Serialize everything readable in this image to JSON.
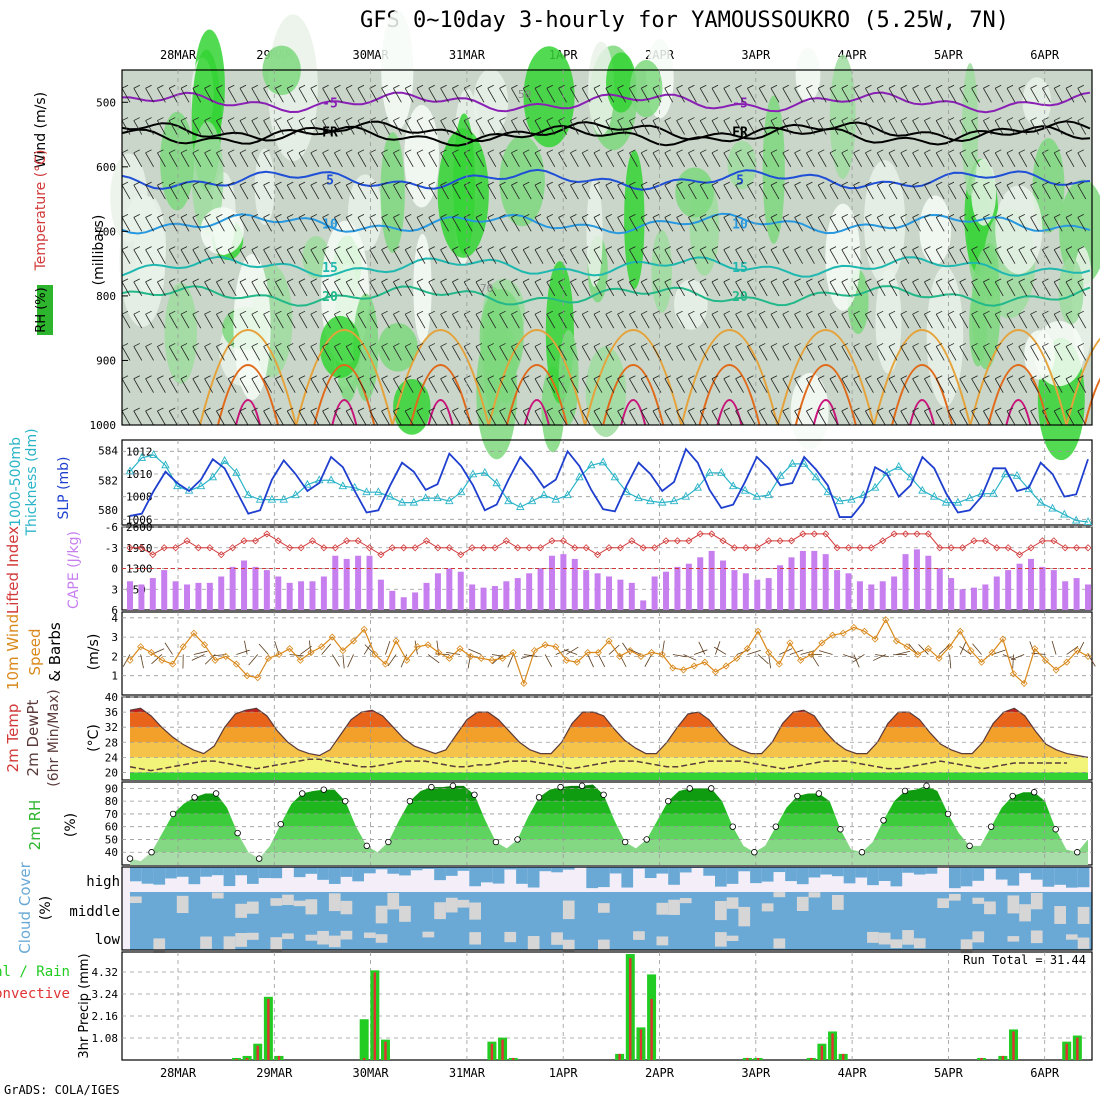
{
  "title": "GFS 0~10day 3-hourly for YAMOUSSOUKRO (5.25W, 7N)",
  "dates": [
    "28MAR",
    "29MAR",
    "30MAR",
    "31MAR",
    "1APR",
    "2APR",
    "3APR",
    "4APR",
    "5APR",
    "6APR"
  ],
  "footer": "GrADS: COLA/IGES",
  "panel_labels": {
    "upper_wind": "Wind (m/s)",
    "upper_temp": "Temperature (°C)",
    "upper_rh": "RH (%)",
    "upper_units": "(millibars)",
    "slp_thick_a": "1000-500mb",
    "slp_thick_b": "Thickness (dm)",
    "slp": "SLP (mb)",
    "li": "Lifted Index",
    "cape": "CAPE (J/kg)",
    "wind10_a": "10m Wind",
    "wind10_b": "Speed",
    "wind10_c": "& Barbs",
    "wind10_unit": "(m/s)",
    "t2_a": "2m Temp",
    "t2_b": "2m DewPt",
    "t2_c": "(6hr Min/Max)",
    "t2_unit": "(°C)",
    "rh2": "2m RH",
    "rh2_unit": "(%)",
    "cloud": "Cloud Cover",
    "cloud_unit": "(%)",
    "cloud_high": "high",
    "cloud_middle": "middle",
    "cloud_low": "low",
    "precip_a": "Total / Rain",
    "precip_b": "Convective",
    "precip_axis": "3hr Precip (mm)",
    "run_total": "Run Total = 31.44"
  },
  "colors": {
    "slp": "#1f3fcf",
    "thickness": "#2ab4c8",
    "cape": "#c77ff0",
    "li": "#d23a3a",
    "wind10": "#d9881a",
    "rh_green": "#2db52d",
    "cloud": "#6aa9d6",
    "precip_total": "#22cc22",
    "precip_conv": "#e03333"
  },
  "chart_data": [
    {
      "type": "heatmap",
      "panel": "upper-air cross section",
      "x": [
        "28MAR",
        "29MAR",
        "30MAR",
        "31MAR",
        "1APR",
        "2APR",
        "3APR",
        "4APR",
        "5APR",
        "6APR"
      ],
      "ylabel": "millibars",
      "yticks": [
        500,
        600,
        700,
        800,
        900,
        1000
      ],
      "ylim": [
        1000,
        450
      ],
      "isotherm_labels": [
        "-5",
        "FR",
        "5",
        "10",
        "15",
        "20"
      ],
      "rh_contour_labels": [
        "50",
        "70"
      ]
    },
    {
      "type": "line",
      "panel": "SLP and thickness",
      "x_step_hours": 3,
      "series": [
        {
          "name": "SLP (mb)",
          "axis": "right",
          "yticks": [
            1006,
            1008,
            1010,
            1012
          ],
          "values": [
            1006.3,
            1006.5,
            1008.5,
            1010.2,
            1009.2,
            1008.5,
            1009.5,
            1011.3,
            1010.5,
            1008.5,
            1006.5,
            1006.8,
            1009.5,
            1011.2,
            1010.0,
            1008.5,
            1009.2,
            1011.5,
            1010.6,
            1008.5,
            1006.6,
            1006.8,
            1009.0,
            1011.0,
            1010.2,
            1008.6,
            1009.1,
            1011.8,
            1010.7,
            1009.0,
            1006.8,
            1007.3,
            1009.5,
            1011.5,
            1010.3,
            1008.8,
            1009.5,
            1012.0,
            1010.7,
            1008.6,
            1006.9,
            1006.7,
            1009.0,
            1011.0,
            1010.0,
            1008.5,
            1009.3,
            1012.2,
            1011.0,
            1008.6,
            1007.0,
            1007.3,
            1009.3,
            1011.5,
            1010.5,
            1009.0,
            1009.2,
            1011.5,
            1010.4,
            1009.0,
            1006.2,
            1006.2,
            1007.5,
            1010.6,
            1010.0,
            1008.0,
            1009.0,
            1011.5,
            1010.5,
            1008.3,
            1006.6,
            1006.8,
            1008.0,
            1010.5,
            1010.5,
            1008.5,
            1008.8,
            1011.0,
            1010.0,
            1008.0,
            1008.2,
            1011.3
          ]
        },
        {
          "name": "1000-500mb Thickness (dm)",
          "axis": "left",
          "yticks": [
            580,
            582,
            584
          ],
          "values": [
            582.6,
            583.5,
            583.7,
            583.0,
            581.6,
            581.3,
            581.6,
            582.2,
            583.3,
            582.5,
            581.0,
            580.7,
            580.7,
            580.7,
            581.0,
            581.7,
            582.0,
            582.0,
            581.6,
            581.5,
            581.2,
            581.2,
            580.9,
            580.5,
            580.5,
            580.8,
            580.8,
            580.6,
            581.2,
            582.4,
            582.5,
            581.8,
            580.6,
            580.2,
            580.6,
            581.0,
            580.7,
            581.0,
            582.2,
            583.0,
            583.2,
            582.2,
            581.2,
            580.8,
            580.6,
            580.5,
            580.6,
            580.9,
            581.5,
            582.5,
            582.5,
            581.6,
            581.3,
            580.9,
            581.0,
            582.3,
            583.1,
            583.1,
            582.2,
            581.2,
            580.6,
            580.7,
            581.0,
            581.5,
            582.5,
            582.9,
            582.2,
            581.3,
            580.9,
            580.5,
            580.5,
            580.8,
            581.1,
            581.1,
            582.4,
            582.3,
            581.4,
            580.5,
            580.1,
            579.7,
            579.3,
            579.2
          ]
        }
      ]
    },
    {
      "type": "bar",
      "panel": "CAPE and Lifted Index",
      "series": [
        {
          "name": "CAPE (J/kg)",
          "axis": "right",
          "yticks": [
            650,
            1300,
            1950,
            2600
          ],
          "values": [
            900,
            800,
            1000,
            1250,
            900,
            800,
            850,
            850,
            1050,
            1350,
            1550,
            1350,
            1250,
            1050,
            850,
            900,
            900,
            1050,
            1700,
            1600,
            1700,
            1700,
            950,
            600,
            400,
            550,
            850,
            1150,
            1300,
            1200,
            800,
            700,
            750,
            900,
            1000,
            1150,
            1300,
            1700,
            1750,
            1600,
            1250,
            1150,
            1050,
            950,
            850,
            300,
            1050,
            1200,
            1350,
            1450,
            1650,
            1850,
            1550,
            1250,
            1150,
            950,
            1000,
            1400,
            1650,
            1850,
            1850,
            1750,
            1250,
            1150,
            900,
            800,
            900,
            1050,
            1750,
            1900,
            1700,
            1300,
            1000,
            650,
            700,
            800,
            1050,
            1250,
            1450,
            1600,
            1350,
            1250,
            900,
            1000,
            800
          ]
        },
        {
          "name": "Lifted Index",
          "axis": "left",
          "yticks": [
            6,
            3,
            0,
            -3,
            -6
          ],
          "values": [
            -3,
            -3,
            -2,
            -3,
            -3,
            -4,
            -3,
            -3,
            -2,
            -3,
            -4,
            -4,
            -5,
            -4,
            -3,
            -3,
            -4,
            -3,
            -3,
            -4,
            -4,
            -3,
            -2,
            -3,
            -3,
            -3,
            -4,
            -3,
            -3,
            -2,
            -3,
            -3,
            -3,
            -4,
            -3,
            -3,
            -3,
            -4,
            -4,
            -3,
            -3,
            -2,
            -3,
            -3,
            -4,
            -3,
            -3,
            -4,
            -4,
            -4,
            -5,
            -5,
            -4,
            -3,
            -3,
            -3,
            -4,
            -4,
            -4,
            -5,
            -5,
            -5,
            -3,
            -3,
            -3,
            -3,
            -4,
            -5,
            -5,
            -5,
            -5,
            -3,
            -3,
            -3,
            -4,
            -4,
            -3,
            -3,
            -2,
            -3,
            -4,
            -4,
            -3,
            -3,
            -3
          ]
        }
      ]
    },
    {
      "type": "line",
      "panel": "10m wind speed",
      "ylabel": "(m/s)",
      "yticks": [
        1,
        2,
        3,
        4
      ],
      "values": [
        1.8,
        2.5,
        2.2,
        1.8,
        1.6,
        2.5,
        3.2,
        2.6,
        1.8,
        2.0,
        1.6,
        1.0,
        0.9,
        1.9,
        2.1,
        2.4,
        1.8,
        2.2,
        2.5,
        3.0,
        2.3,
        2.8,
        3.4,
        2.1,
        1.6,
        2.8,
        1.8,
        2.5,
        2.6,
        2.2,
        1.9,
        2.4,
        2.0,
        1.9,
        1.8,
        1.9,
        2.2,
        0.6,
        2.3,
        2.6,
        2.5,
        1.8,
        1.7,
        2.2,
        2.2,
        2.8,
        2.0,
        2.3,
        2.0,
        2.2,
        2.1,
        1.4,
        1.3,
        1.5,
        1.7,
        1.2,
        1.5,
        1.9,
        2.4,
        3.3,
        2.2,
        1.6,
        2.7,
        1.8,
        2.1,
        2.7,
        3.1,
        3.2,
        3.5,
        3.3,
        2.9,
        3.9,
        2.8,
        2.5,
        2.1,
        2.4,
        1.9,
        2.5,
        3.3,
        2.3,
        1.7,
        2.2,
        2.9,
        1.1,
        0.6,
        2.4,
        1.8,
        1.3,
        1.7,
        2.3,
        2.0
      ]
    },
    {
      "type": "area",
      "panel": "2m temperature and dewpoint",
      "ylabel": "(°C)",
      "yticks": [
        20,
        24,
        28,
        32,
        36,
        40
      ],
      "series": [
        {
          "name": "2m Temp",
          "values": [
            36.5,
            37,
            35,
            32,
            29.5,
            27.5,
            26,
            25,
            27,
            32,
            35.5,
            36.5,
            37,
            35,
            31,
            28,
            26,
            25,
            24.5,
            26,
            30,
            34,
            36,
            36.5,
            35,
            32,
            29,
            27,
            26,
            25,
            26,
            30,
            34,
            36,
            36,
            34,
            31,
            28,
            26,
            25,
            25,
            28,
            33,
            36,
            36,
            35,
            31.5,
            28.5,
            26.5,
            25,
            25,
            28,
            32,
            35.5,
            36,
            34,
            30.5,
            27.5,
            26,
            25,
            25,
            28,
            33,
            36,
            36.5,
            35,
            31,
            28,
            26,
            25,
            25,
            28,
            33,
            36,
            36,
            34,
            30.5,
            27.5,
            26,
            25,
            25,
            28,
            33,
            36,
            37,
            35,
            31,
            27.5,
            26,
            25,
            24.5,
            24
          ]
        },
        {
          "name": "2m DewPt",
          "values": [
            21.5,
            21,
            20.5,
            21,
            21.5,
            22,
            22.5,
            23,
            23,
            22.5,
            22,
            21.5,
            21,
            21.5,
            22,
            22.5,
            23,
            23.5,
            23.5,
            23,
            22.5,
            22,
            21.5,
            21.5,
            22,
            22.5,
            23,
            23,
            23,
            22.5,
            22,
            21.5,
            21.5,
            22,
            22,
            22.5,
            23,
            23,
            23,
            22.5,
            22,
            21.5,
            21,
            21.5,
            22,
            22.5,
            23,
            23,
            23,
            22.5,
            22,
            21.5,
            21.5,
            22,
            22.5,
            23,
            23,
            23,
            23,
            22.5,
            22,
            21.5,
            21,
            21.5,
            22,
            22.5,
            23,
            23,
            23,
            22.5,
            22,
            21.5,
            21,
            21,
            21.5,
            22,
            22.5,
            23,
            22.5,
            22,
            21.5,
            21,
            21.5,
            22,
            22.5,
            22.5,
            22.5,
            22.5,
            22.5,
            22.5
          ]
        }
      ]
    },
    {
      "type": "area",
      "panel": "2m relative humidity",
      "ylabel": "(%)",
      "yticks": [
        40,
        50,
        60,
        70,
        80,
        90
      ],
      "values": [
        35,
        33,
        40,
        55,
        70,
        78,
        83,
        86,
        86,
        75,
        55,
        40,
        35,
        45,
        62,
        78,
        86,
        88,
        89,
        89,
        80,
        60,
        45,
        40,
        48,
        65,
        80,
        88,
        91,
        91,
        92,
        92,
        85,
        65,
        48,
        43,
        50,
        68,
        83,
        89,
        91,
        92,
        92,
        93,
        85,
        65,
        48,
        43,
        50,
        65,
        80,
        88,
        90,
        90,
        90,
        80,
        60,
        45,
        40,
        45,
        60,
        75,
        84,
        86,
        86,
        80,
        58,
        42,
        40,
        48,
        65,
        80,
        88,
        89,
        92,
        88,
        70,
        55,
        45,
        45,
        60,
        75,
        84,
        87,
        87,
        80,
        58,
        42,
        40,
        50
      ]
    },
    {
      "type": "bar",
      "panel": "cloud cover",
      "ylabel": "(%)",
      "categories": [
        "high",
        "middle",
        "low"
      ]
    },
    {
      "type": "bar",
      "panel": "3hr precipitation",
      "ylabel": "3hr Precip (mm)",
      "yticks": [
        1.08,
        2.16,
        3.24,
        4.32
      ],
      "series": [
        {
          "name": "Total / Rain",
          "values": [
            0,
            0,
            0,
            0,
            0,
            0,
            0,
            0,
            0,
            0,
            0.1,
            0.2,
            0.8,
            3.1,
            0.2,
            0,
            0,
            0,
            0,
            0,
            0,
            0,
            2.0,
            4.4,
            1.0,
            0,
            0,
            0,
            0,
            0,
            0,
            0,
            0,
            0,
            0.9,
            1.1,
            0.1,
            0,
            0,
            0,
            0,
            0,
            0,
            0,
            0,
            0,
            0.3,
            5.2,
            1.6,
            4.2,
            0,
            0,
            0,
            0,
            0,
            0,
            0,
            0,
            0.1,
            0.1,
            0,
            0,
            0,
            0,
            0.1,
            0.8,
            1.4,
            0.3,
            0,
            0,
            0,
            0,
            0,
            0,
            0,
            0,
            0,
            0,
            0,
            0,
            0.1,
            0,
            0.2,
            1.5,
            0,
            0,
            0,
            0,
            0.9,
            1.2,
            0
          ]
        },
        {
          "name": "Convective",
          "values": [
            0,
            0,
            0,
            0,
            0,
            0,
            0,
            0,
            0,
            0,
            0.05,
            0.1,
            0.7,
            3.0,
            0.2,
            0,
            0,
            0,
            0,
            0,
            0,
            0,
            0.1,
            4.3,
            0.9,
            0,
            0,
            0,
            0,
            0,
            0,
            0,
            0,
            0,
            0.8,
            1.0,
            0.1,
            0,
            0,
            0,
            0,
            0,
            0,
            0,
            0,
            0,
            0.3,
            5.0,
            1.5,
            3.0,
            0,
            0,
            0,
            0,
            0,
            0,
            0,
            0,
            0.1,
            0.1,
            0,
            0,
            0,
            0,
            0.1,
            0.7,
            1.3,
            0.3,
            0,
            0,
            0,
            0,
            0.1,
            0,
            0,
            0,
            0,
            0,
            0,
            0,
            0.1,
            0,
            0.2,
            1.4,
            0,
            0,
            0,
            0,
            0.8,
            1.1,
            0
          ]
        }
      ],
      "annotation": "Run Total = 31.44"
    }
  ]
}
